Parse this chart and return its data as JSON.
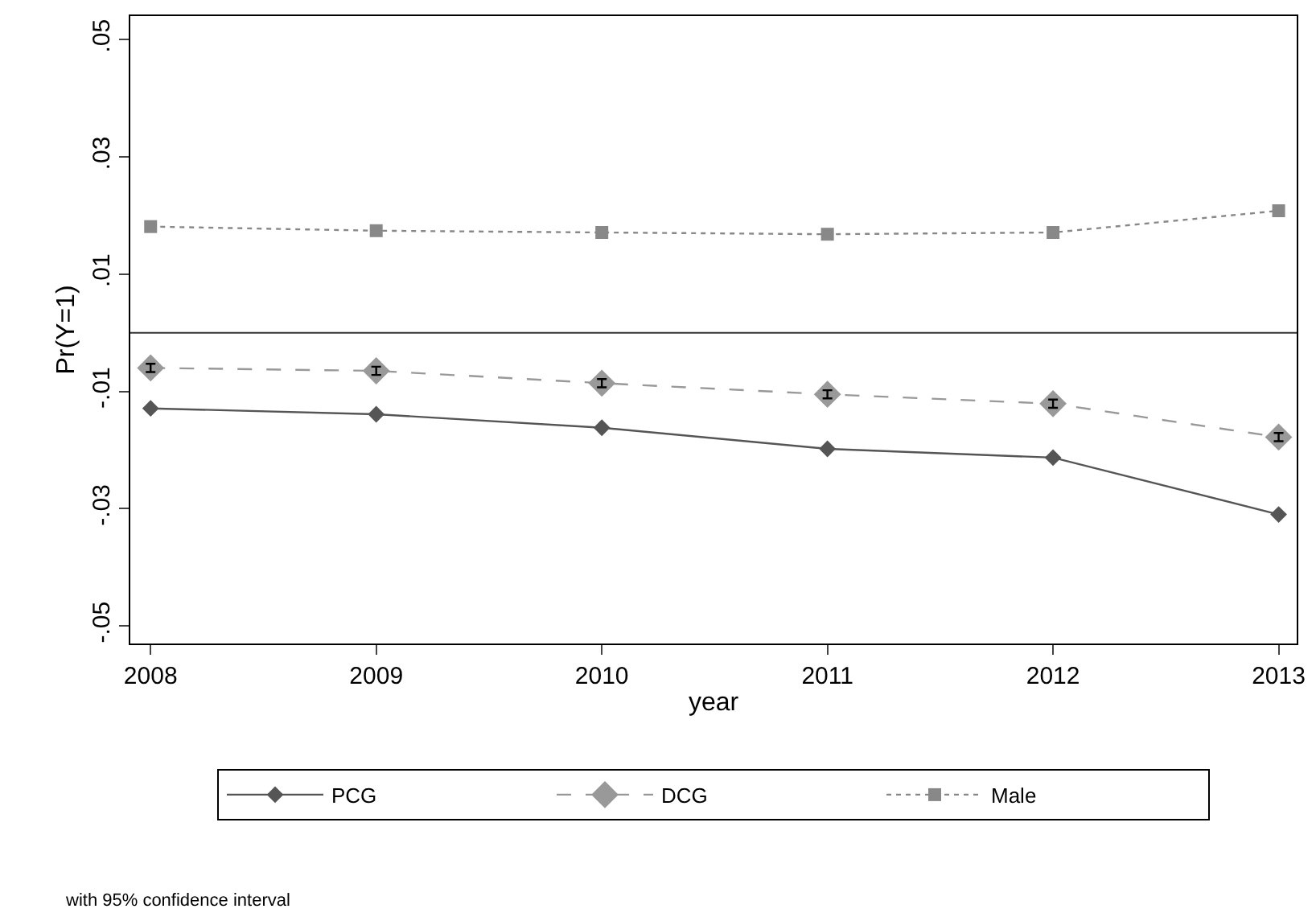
{
  "chart_data": {
    "type": "line",
    "xlabel": "year",
    "ylabel": "Pr(Y=1)",
    "x": [
      2008,
      2009,
      2010,
      2011,
      2012,
      2013
    ],
    "xlim": [
      2007.91,
      2013.08
    ],
    "xticks": [
      2008,
      2009,
      2010,
      2011,
      2012,
      2013
    ],
    "ylim": [
      -0.053,
      0.054
    ],
    "yticks": [
      {
        "value": -0.05,
        "label": "-.05"
      },
      {
        "value": -0.03,
        "label": "-.03"
      },
      {
        "value": -0.01,
        "label": "-.01"
      },
      {
        "value": 0.01,
        "label": ".01"
      },
      {
        "value": 0.03,
        "label": ".03"
      },
      {
        "value": 0.05,
        "label": ".05"
      }
    ],
    "series": [
      {
        "name": "PCG",
        "color": "#555555",
        "marker": "diamond",
        "line_style": "solid",
        "values": [
          -0.0129,
          -0.0139,
          -0.0162,
          -0.0198,
          -0.0213,
          -0.031
        ]
      },
      {
        "name": "DCG",
        "color": "#999999",
        "marker": "diamond",
        "line_style": "dashed",
        "values": [
          -0.006,
          -0.0065,
          -0.0086,
          -0.0105,
          -0.0121,
          -0.0178
        ],
        "errors": [
          0.0007,
          0.0007,
          0.0007,
          0.0007,
          0.0007,
          0.0007
        ]
      },
      {
        "name": "Male",
        "color": "#888888",
        "marker": "square",
        "line_style": "dotted",
        "values": [
          0.0181,
          0.0174,
          0.0171,
          0.0168,
          0.0171,
          0.0208
        ]
      }
    ],
    "ref_lines": [
      {
        "axis": "y",
        "value": 0,
        "label": null
      }
    ],
    "legend": "bottom",
    "grid": false,
    "annotations": [
      "with 95% confidence interval"
    ]
  }
}
